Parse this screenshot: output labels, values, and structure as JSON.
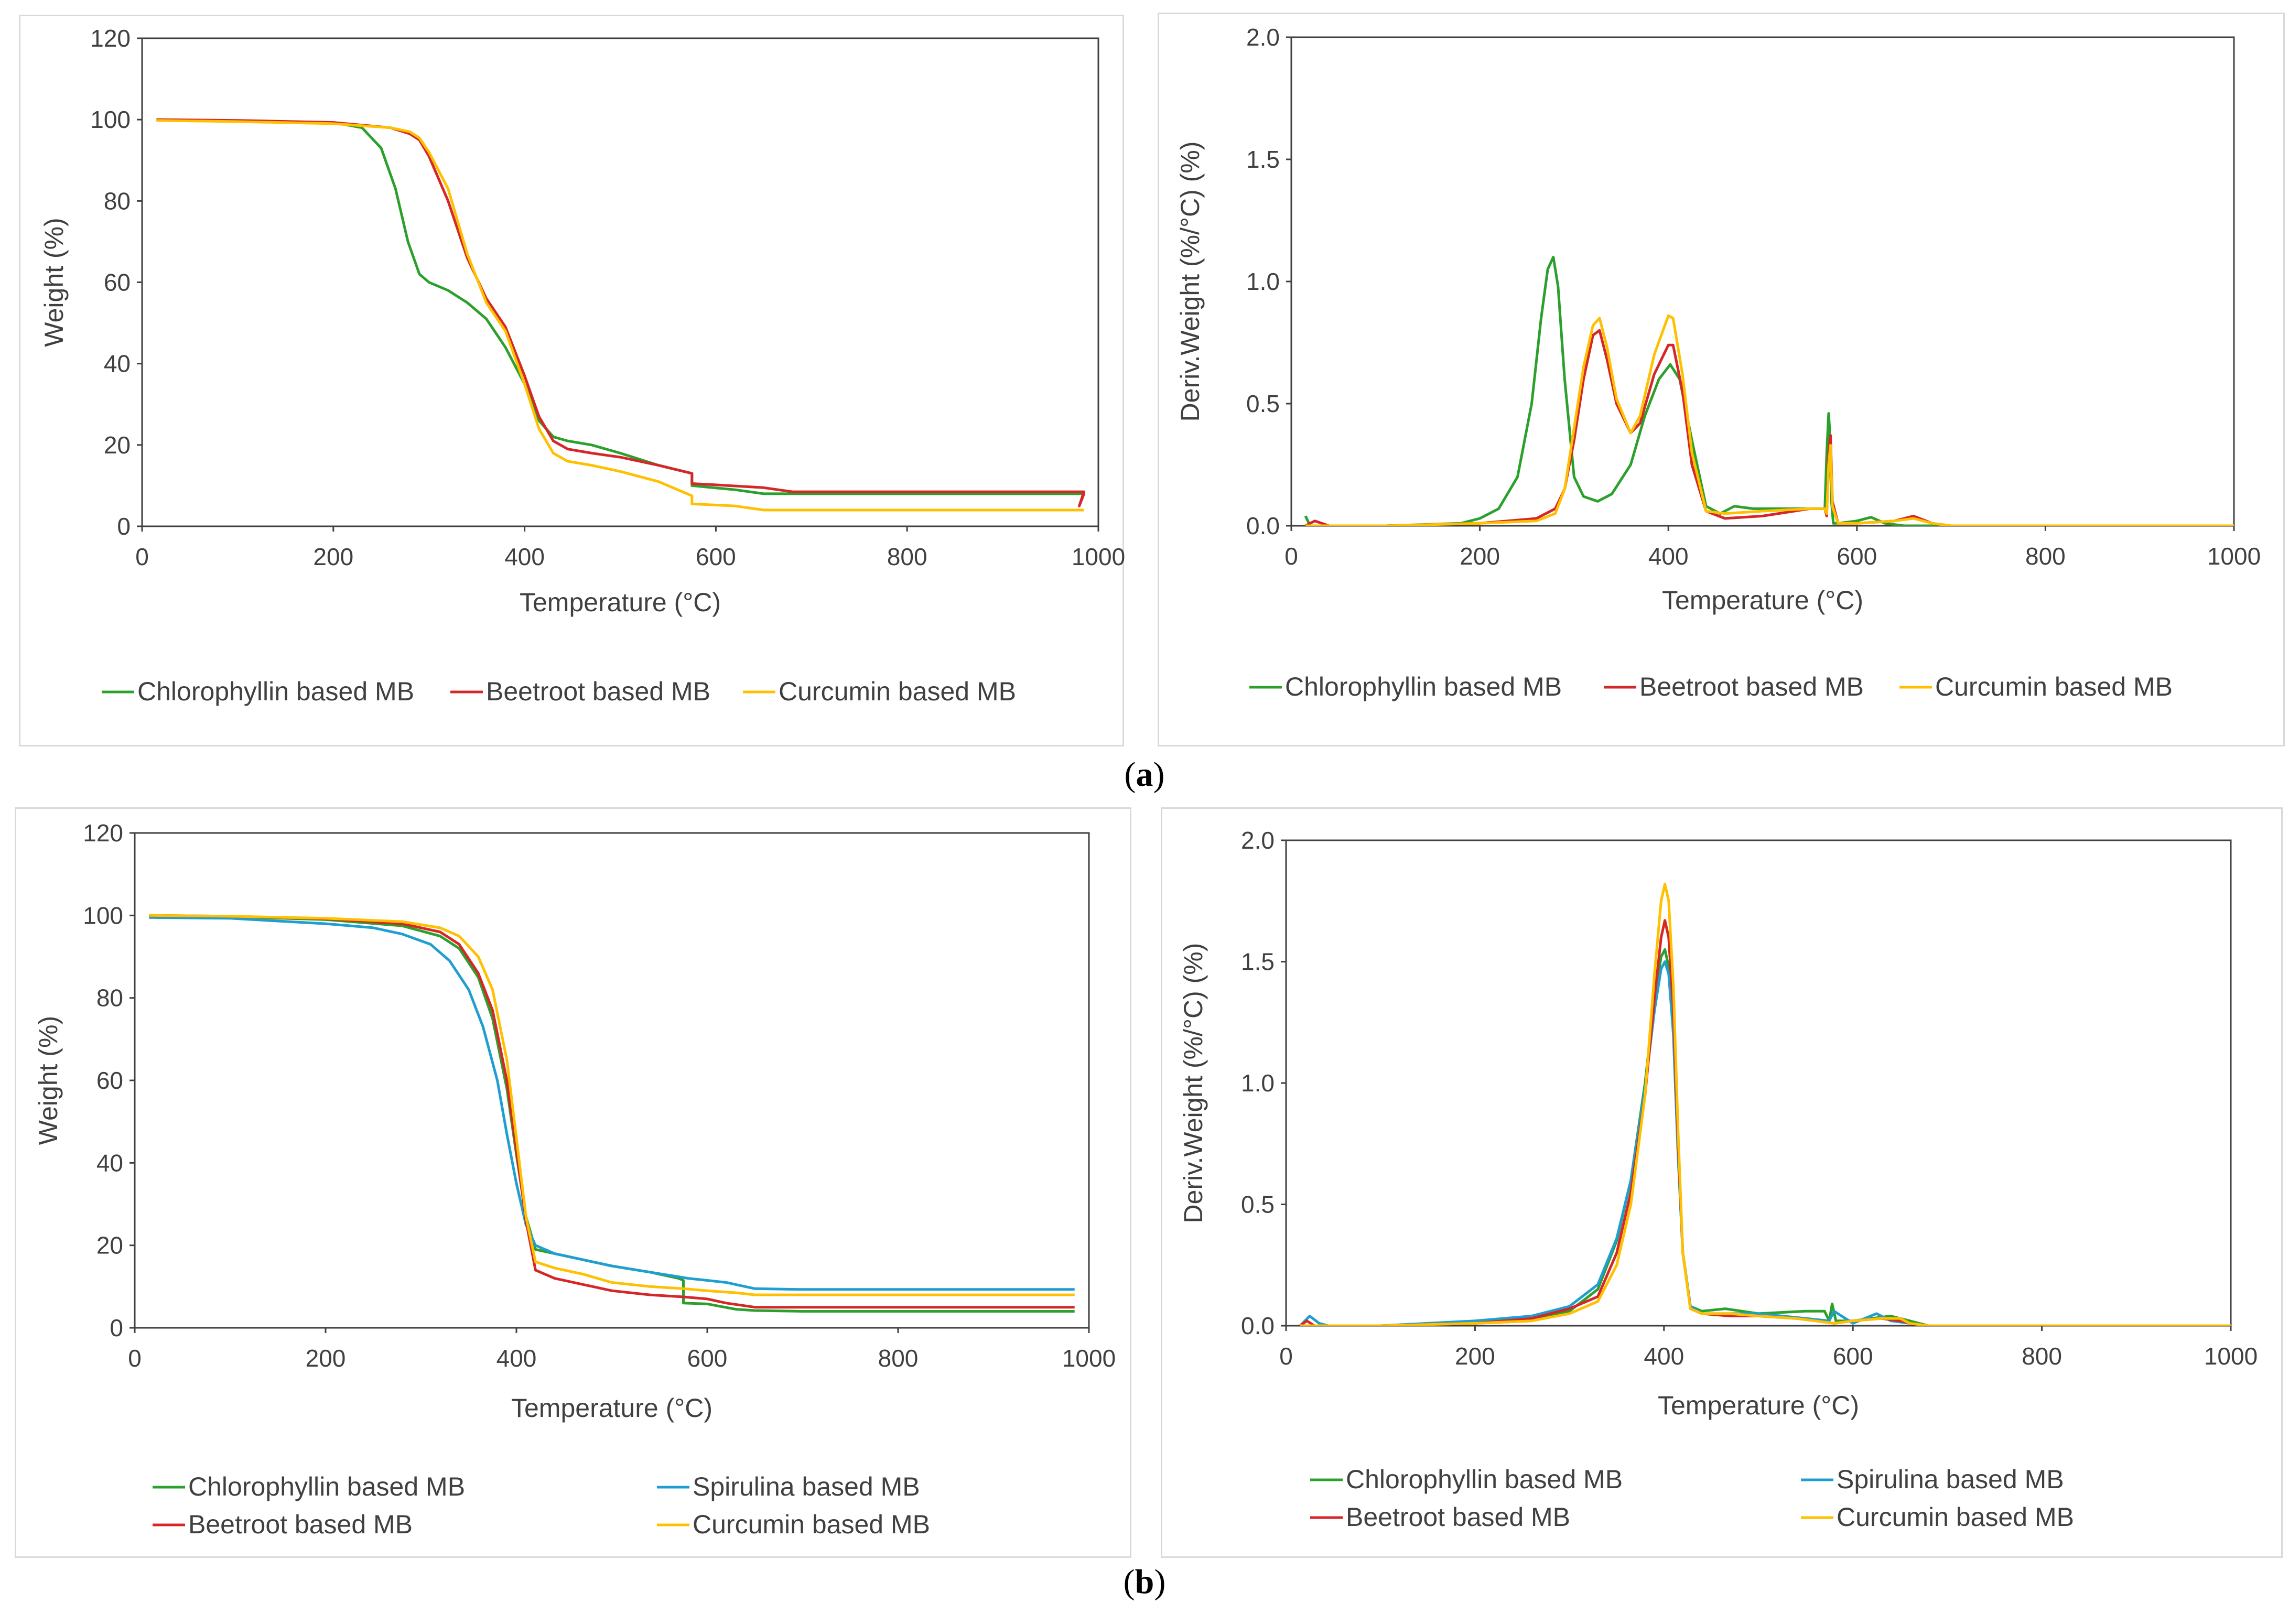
{
  "figure": {
    "labels": [
      "a",
      "b"
    ]
  },
  "chart_data": [
    {
      "id": "a1",
      "type": "line",
      "title": "",
      "xlabel": "Temperature (°C)",
      "ylabel": "Weight (%)",
      "xlim": [
        0,
        1000
      ],
      "ylim": [
        0,
        120
      ],
      "xticks": [
        0,
        200,
        400,
        600,
        800,
        1000
      ],
      "yticks": [
        0,
        20,
        40,
        60,
        80,
        100,
        120
      ],
      "ytick_labels": [
        "0",
        "20",
        "40",
        "60",
        "80",
        "100",
        "120"
      ],
      "legend_cols": 3,
      "series": [
        {
          "name": "Chlorophyllin based MB",
          "color": "#2ca02c",
          "x": [
            15,
            100,
            200,
            230,
            250,
            265,
            278,
            290,
            300,
            320,
            340,
            360,
            380,
            400,
            415,
            430,
            445,
            470,
            500,
            540,
            575,
            575,
            620,
            650,
            700,
            800,
            900,
            985
          ],
          "y": [
            100,
            99.7,
            99.3,
            98,
            93,
            83,
            70,
            62,
            60,
            58,
            55,
            51,
            44,
            35,
            26,
            22,
            21,
            20,
            18,
            15,
            13,
            10,
            9,
            8,
            8,
            8,
            8,
            8
          ]
        },
        {
          "name": "Beetroot based MB",
          "color": "#d62728",
          "x": [
            15,
            100,
            200,
            260,
            280,
            290,
            300,
            320,
            340,
            360,
            380,
            400,
            415,
            430,
            445,
            470,
            500,
            540,
            575,
            575,
            600,
            650,
            680,
            800,
            900,
            985,
            980,
            985
          ],
          "y": [
            100,
            99.8,
            99.3,
            98,
            96.5,
            95,
            91,
            80,
            66,
            56,
            49,
            37,
            27,
            21,
            19,
            18,
            17,
            15,
            13,
            10.5,
            10.2,
            9.5,
            8.5,
            8.5,
            8.5,
            8.5,
            5,
            8
          ]
        },
        {
          "name": "Curcumin based MB",
          "color": "#ffc000",
          "x": [
            15,
            100,
            200,
            260,
            280,
            290,
            300,
            320,
            340,
            360,
            380,
            400,
            415,
            430,
            445,
            470,
            500,
            540,
            575,
            575,
            620,
            650,
            700,
            800,
            900,
            985
          ],
          "y": [
            99.8,
            99.5,
            99,
            98,
            97,
            95.5,
            92,
            83,
            67,
            55,
            48,
            35,
            24,
            18,
            16,
            15,
            13.5,
            11,
            7.5,
            5.5,
            5,
            4,
            4,
            4,
            4,
            4
          ]
        }
      ]
    },
    {
      "id": "a2",
      "type": "line",
      "title": "",
      "xlabel": "Temperature (°C)",
      "ylabel": "Deriv.Weight (%/°C) (%)",
      "xlim": [
        0,
        1000
      ],
      "ylim": [
        0,
        2
      ],
      "xticks": [
        0,
        200,
        400,
        600,
        800,
        1000
      ],
      "yticks": [
        0,
        0.5,
        1,
        1.5,
        2
      ],
      "ytick_labels": [
        "0.0",
        "0.5",
        "1.0",
        "1.5",
        "2.0"
      ],
      "legend_cols": 3,
      "series": [
        {
          "name": "Chlorophyllin based MB",
          "color": "#2ca02c",
          "x": [
            15,
            20,
            40,
            100,
            180,
            200,
            220,
            240,
            255,
            265,
            272,
            278,
            283,
            290,
            300,
            310,
            325,
            340,
            360,
            375,
            390,
            402,
            412,
            425,
            440,
            455,
            470,
            490,
            520,
            550,
            566,
            568,
            570,
            571,
            573,
            575,
            580,
            600,
            615,
            630,
            650,
            700,
            1000
          ],
          "y": [
            0.04,
            0,
            0,
            0,
            0.01,
            0.03,
            0.07,
            0.2,
            0.5,
            0.85,
            1.05,
            1.1,
            0.98,
            0.6,
            0.2,
            0.12,
            0.1,
            0.13,
            0.25,
            0.45,
            0.6,
            0.66,
            0.6,
            0.35,
            0.08,
            0.05,
            0.08,
            0.07,
            0.07,
            0.07,
            0.07,
            0.3,
            0.46,
            0.4,
            0.1,
            0.01,
            0.01,
            0.02,
            0.035,
            0.01,
            0,
            0,
            0
          ]
        },
        {
          "name": "Beetroot based MB",
          "color": "#d62728",
          "x": [
            15,
            25,
            40,
            100,
            200,
            260,
            280,
            290,
            300,
            310,
            320,
            327,
            335,
            345,
            360,
            370,
            385,
            400,
            405,
            415,
            425,
            440,
            460,
            500,
            550,
            566,
            568,
            570,
            572,
            574,
            580,
            600,
            640,
            660,
            680,
            700,
            1000
          ],
          "y": [
            0,
            0.02,
            0,
            0,
            0.01,
            0.03,
            0.07,
            0.15,
            0.35,
            0.6,
            0.78,
            0.8,
            0.68,
            0.5,
            0.38,
            0.42,
            0.62,
            0.74,
            0.74,
            0.55,
            0.25,
            0.06,
            0.03,
            0.04,
            0.07,
            0.07,
            0.04,
            0.3,
            0.37,
            0.1,
            0.01,
            0.01,
            0.02,
            0.04,
            0.01,
            0,
            0
          ]
        },
        {
          "name": "Curcumin based MB",
          "color": "#ffc000",
          "x": [
            15,
            40,
            100,
            200,
            260,
            280,
            290,
            300,
            310,
            320,
            327,
            335,
            345,
            360,
            370,
            385,
            400,
            405,
            415,
            425,
            440,
            460,
            500,
            550,
            566,
            568,
            570,
            572,
            574,
            580,
            600,
            640,
            660,
            680,
            700,
            1000
          ],
          "y": [
            0,
            0,
            0,
            0.01,
            0.02,
            0.05,
            0.15,
            0.4,
            0.65,
            0.82,
            0.85,
            0.73,
            0.52,
            0.38,
            0.45,
            0.7,
            0.86,
            0.85,
            0.62,
            0.3,
            0.06,
            0.05,
            0.06,
            0.07,
            0.07,
            0.05,
            0.25,
            0.33,
            0.08,
            0.01,
            0.01,
            0.02,
            0.03,
            0.01,
            0,
            0
          ]
        }
      ]
    },
    {
      "id": "b1",
      "type": "line",
      "title": "",
      "xlabel": "Temperature (°C)",
      "ylabel": "Weight (%)",
      "xlim": [
        0,
        1000
      ],
      "ylim": [
        0,
        120
      ],
      "xticks": [
        0,
        200,
        400,
        600,
        800,
        1000
      ],
      "yticks": [
        0,
        20,
        40,
        60,
        80,
        100,
        120
      ],
      "ytick_labels": [
        "0",
        "20",
        "40",
        "60",
        "80",
        "100",
        "120"
      ],
      "legend_cols": 2,
      "series": [
        {
          "name": "Chlorophyllin based MB",
          "color": "#2ca02c",
          "x": [
            15,
            100,
            200,
            280,
            320,
            340,
            360,
            375,
            390,
            400,
            410,
            420,
            440,
            470,
            500,
            540,
            570,
            575,
            575,
            600,
            630,
            650,
            700,
            800,
            985
          ],
          "y": [
            100,
            99.7,
            99,
            97.5,
            95,
            92,
            85,
            75,
            58,
            42,
            27,
            19,
            18,
            16.5,
            15,
            13.5,
            12,
            11.5,
            6,
            5.8,
            4.5,
            4.2,
            4,
            4,
            4
          ]
        },
        {
          "name": "Spirulina based MB",
          "color": "#1f9fd0",
          "x": [
            15,
            100,
            200,
            250,
            280,
            310,
            330,
            350,
            365,
            380,
            390,
            400,
            410,
            420,
            440,
            470,
            500,
            540,
            580,
            600,
            620,
            650,
            700,
            800,
            985
          ],
          "y": [
            99.5,
            99.3,
            98,
            97,
            95.5,
            93,
            89,
            82,
            73,
            60,
            47,
            35,
            25,
            20,
            18,
            16.5,
            15,
            13.5,
            12,
            11.5,
            11,
            9.5,
            9.3,
            9.3,
            9.3
          ]
        },
        {
          "name": "Beetroot based MB",
          "color": "#d62728",
          "x": [
            15,
            100,
            200,
            280,
            320,
            340,
            360,
            375,
            390,
            400,
            410,
            420,
            440,
            470,
            500,
            540,
            575,
            600,
            620,
            650,
            700,
            800,
            985
          ],
          "y": [
            100,
            99.8,
            99.2,
            98,
            96,
            93,
            86,
            77,
            60,
            43,
            26,
            14,
            12,
            10.5,
            9,
            8,
            7.5,
            7,
            6,
            5,
            5,
            5,
            5
          ]
        },
        {
          "name": "Curcumin based MB",
          "color": "#ffc000",
          "x": [
            15,
            100,
            200,
            280,
            320,
            340,
            360,
            375,
            390,
            400,
            410,
            420,
            440,
            470,
            500,
            540,
            575,
            600,
            630,
            650,
            700,
            800,
            985
          ],
          "y": [
            100,
            99.8,
            99.3,
            98.5,
            97,
            95,
            90,
            82,
            65,
            46,
            27,
            16,
            14.5,
            13,
            11,
            10,
            9.5,
            9,
            8.5,
            8,
            8,
            8,
            8
          ]
        }
      ]
    },
    {
      "id": "b2",
      "type": "line",
      "title": "",
      "xlabel": "Temperature (°C)",
      "ylabel": "Deriv.Weight (%/°C) (%)",
      "xlim": [
        0,
        1000
      ],
      "ylim": [
        0,
        2
      ],
      "xticks": [
        0,
        200,
        400,
        600,
        800,
        1000
      ],
      "yticks": [
        0,
        0.5,
        1,
        1.5,
        2
      ],
      "ytick_labels": [
        "0.0",
        "0.5",
        "1.0",
        "1.5",
        "2.0"
      ],
      "legend_cols": 2,
      "series": [
        {
          "name": "Chlorophyllin based MB",
          "color": "#2ca02c",
          "x": [
            15,
            40,
            100,
            200,
            260,
            300,
            330,
            350,
            365,
            380,
            390,
            397,
            401,
            405,
            410,
            415,
            420,
            428,
            440,
            465,
            500,
            550,
            570,
            575,
            578,
            582,
            600,
            640,
            660,
            680,
            1000
          ],
          "y": [
            0,
            0,
            0,
            0.01,
            0.02,
            0.06,
            0.15,
            0.35,
            0.6,
            1.0,
            1.35,
            1.52,
            1.55,
            1.48,
            1.2,
            0.7,
            0.3,
            0.08,
            0.06,
            0.07,
            0.05,
            0.06,
            0.06,
            0.02,
            0.09,
            0.02,
            0.02,
            0.04,
            0.02,
            0,
            0
          ]
        },
        {
          "name": "Spirulina based MB",
          "color": "#1f9fd0",
          "x": [
            15,
            25,
            35,
            45,
            100,
            200,
            260,
            300,
            330,
            350,
            365,
            380,
            390,
            397,
            401,
            405,
            410,
            415,
            420,
            428,
            440,
            470,
            500,
            550,
            575,
            580,
            600,
            625,
            640,
            660,
            680,
            1000
          ],
          "y": [
            0,
            0.04,
            0.01,
            0,
            0,
            0.02,
            0.04,
            0.08,
            0.17,
            0.36,
            0.6,
            0.98,
            1.3,
            1.47,
            1.5,
            1.45,
            1.2,
            0.7,
            0.3,
            0.08,
            0.05,
            0.05,
            0.05,
            0.03,
            0.02,
            0.06,
            0.01,
            0.05,
            0.02,
            0.01,
            0,
            0
          ]
        },
        {
          "name": "Beetroot based MB",
          "color": "#d62728",
          "x": [
            15,
            22,
            30,
            100,
            200,
            260,
            300,
            330,
            350,
            365,
            380,
            390,
            397,
            401,
            405,
            410,
            415,
            420,
            428,
            440,
            470,
            500,
            540,
            560,
            580,
            600,
            630,
            650,
            660,
            680,
            1000
          ],
          "y": [
            0,
            0.02,
            0,
            0,
            0.01,
            0.03,
            0.07,
            0.12,
            0.3,
            0.55,
            0.95,
            1.35,
            1.6,
            1.67,
            1.6,
            1.3,
            0.75,
            0.3,
            0.07,
            0.05,
            0.04,
            0.04,
            0.03,
            0.02,
            0.01,
            0.02,
            0.03,
            0.02,
            0.01,
            0,
            0
          ]
        },
        {
          "name": "Curcumin based MB",
          "color": "#ffc000",
          "x": [
            15,
            40,
            100,
            200,
            260,
            300,
            330,
            350,
            365,
            380,
            390,
            397,
            401,
            405,
            410,
            415,
            420,
            428,
            440,
            470,
            500,
            540,
            560,
            580,
            600,
            630,
            650,
            660,
            680,
            1000
          ],
          "y": [
            0,
            0,
            0,
            0.01,
            0.02,
            0.05,
            0.1,
            0.25,
            0.5,
            0.95,
            1.45,
            1.75,
            1.82,
            1.75,
            1.4,
            0.8,
            0.3,
            0.07,
            0.05,
            0.05,
            0.04,
            0.03,
            0.02,
            0.01,
            0.02,
            0.03,
            0.03,
            0.01,
            0,
            0
          ]
        }
      ]
    }
  ]
}
